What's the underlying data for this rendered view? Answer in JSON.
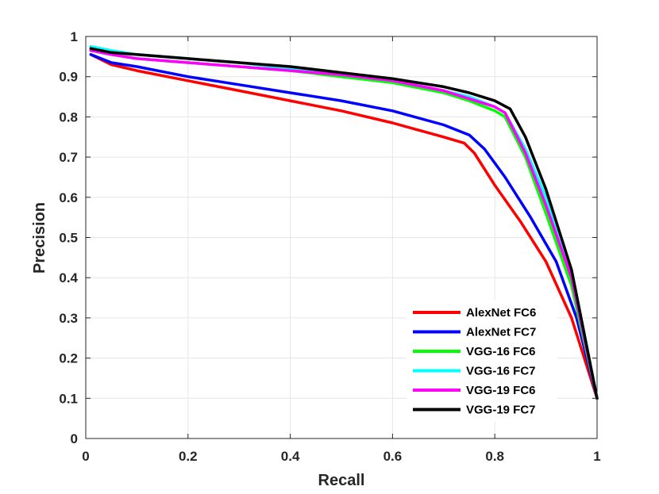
{
  "chart_data": {
    "type": "line",
    "title": "",
    "xlabel": "Recall",
    "ylabel": "Precision",
    "xlim": [
      0,
      1
    ],
    "ylim": [
      0,
      1
    ],
    "grid": true,
    "legend_position": "bottom-right",
    "x_ticks": [
      "0",
      "0.2",
      "0.4",
      "0.6",
      "0.8",
      "1"
    ],
    "y_ticks": [
      "0",
      "0.1",
      "0.2",
      "0.3",
      "0.4",
      "0.5",
      "0.6",
      "0.7",
      "0.8",
      "0.9",
      "1"
    ],
    "series": [
      {
        "name": "AlexNet FC6",
        "color": "#ff0000",
        "x": [
          0.01,
          0.05,
          0.1,
          0.2,
          0.3,
          0.4,
          0.5,
          0.6,
          0.7,
          0.74,
          0.76,
          0.8,
          0.85,
          0.9,
          0.95,
          1.0
        ],
        "y": [
          0.955,
          0.93,
          0.915,
          0.89,
          0.865,
          0.84,
          0.815,
          0.785,
          0.75,
          0.735,
          0.71,
          0.63,
          0.54,
          0.44,
          0.3,
          0.1
        ]
      },
      {
        "name": "AlexNet FC7",
        "color": "#0000ff",
        "x": [
          0.01,
          0.05,
          0.1,
          0.2,
          0.3,
          0.4,
          0.5,
          0.6,
          0.7,
          0.75,
          0.78,
          0.82,
          0.87,
          0.92,
          0.96,
          1.0
        ],
        "y": [
          0.955,
          0.935,
          0.925,
          0.9,
          0.88,
          0.86,
          0.84,
          0.815,
          0.78,
          0.755,
          0.72,
          0.65,
          0.55,
          0.44,
          0.3,
          0.1
        ]
      },
      {
        "name": "VGG-16 FC6",
        "color": "#00ff00",
        "x": [
          0.01,
          0.05,
          0.1,
          0.2,
          0.3,
          0.4,
          0.5,
          0.6,
          0.7,
          0.75,
          0.8,
          0.82,
          0.86,
          0.9,
          0.95,
          1.0
        ],
        "y": [
          0.965,
          0.955,
          0.945,
          0.935,
          0.925,
          0.915,
          0.9,
          0.885,
          0.86,
          0.84,
          0.815,
          0.8,
          0.7,
          0.56,
          0.38,
          0.1
        ]
      },
      {
        "name": "VGG-16 FC7",
        "color": "#00ffff",
        "x": [
          0.01,
          0.05,
          0.1,
          0.2,
          0.3,
          0.4,
          0.5,
          0.6,
          0.7,
          0.75,
          0.8,
          0.82,
          0.86,
          0.9,
          0.95,
          1.0
        ],
        "y": [
          0.975,
          0.965,
          0.955,
          0.945,
          0.935,
          0.92,
          0.905,
          0.89,
          0.865,
          0.85,
          0.825,
          0.81,
          0.72,
          0.6,
          0.42,
          0.1
        ]
      },
      {
        "name": "VGG-19 FC6",
        "color": "#ff00ff",
        "x": [
          0.01,
          0.05,
          0.1,
          0.2,
          0.3,
          0.4,
          0.5,
          0.6,
          0.7,
          0.75,
          0.8,
          0.82,
          0.86,
          0.9,
          0.95,
          1.0
        ],
        "y": [
          0.965,
          0.955,
          0.945,
          0.935,
          0.925,
          0.915,
          0.905,
          0.89,
          0.865,
          0.845,
          0.825,
          0.81,
          0.71,
          0.58,
          0.4,
          0.1
        ]
      },
      {
        "name": "VGG-19 FC7",
        "color": "#000000",
        "x": [
          0.01,
          0.05,
          0.1,
          0.2,
          0.3,
          0.4,
          0.5,
          0.6,
          0.7,
          0.75,
          0.8,
          0.83,
          0.86,
          0.9,
          0.95,
          1.0
        ],
        "y": [
          0.97,
          0.96,
          0.955,
          0.945,
          0.935,
          0.925,
          0.91,
          0.895,
          0.875,
          0.86,
          0.84,
          0.82,
          0.75,
          0.62,
          0.42,
          0.1
        ]
      }
    ]
  }
}
